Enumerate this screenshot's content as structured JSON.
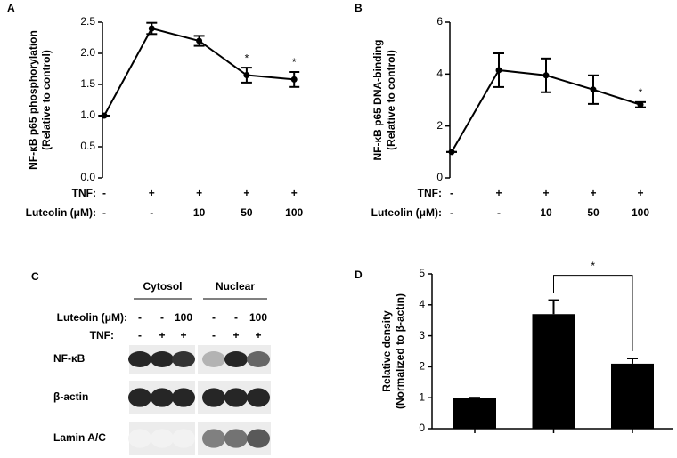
{
  "chart_data": [
    {
      "type": "line",
      "panel": "A",
      "color": "#000000",
      "ylabel": [
        "NF-κB p65 phosphorylation",
        "(Relative to control)"
      ],
      "category_rows": [
        {
          "label": "TNF:",
          "values": [
            "-",
            "+",
            "+",
            "+",
            "+"
          ]
        },
        {
          "label": "Luteolin (μM):",
          "values": [
            "-",
            "-",
            "10",
            "50",
            "100"
          ]
        }
      ],
      "values": [
        1.0,
        2.4,
        2.2,
        1.65,
        1.58
      ],
      "errors": [
        0,
        0.09,
        0.08,
        0.12,
        0.12
      ],
      "annotations": [
        {
          "index": 3,
          "text": "*"
        },
        {
          "index": 4,
          "text": "*"
        }
      ],
      "ylim": [
        0,
        2.5
      ],
      "yticks": [
        {
          "value": 0,
          "label": "0.0"
        },
        0.5,
        {
          "value": 1,
          "label": "1.0"
        },
        1.5,
        {
          "value": 2,
          "label": "2.0"
        },
        2.5
      ]
    },
    {
      "type": "line",
      "panel": "B",
      "color": "#000000",
      "ylabel": [
        "NF-κB p65 DNA-binding",
        "(Relative to control)"
      ],
      "category_rows": [
        {
          "label": "TNF:",
          "values": [
            "-",
            "+",
            "+",
            "+",
            "+"
          ]
        },
        {
          "label": "Luteolin (μM):",
          "values": [
            "-",
            "-",
            "10",
            "50",
            "100"
          ]
        }
      ],
      "values": [
        1.0,
        4.15,
        3.95,
        3.4,
        2.82
      ],
      "errors": [
        0,
        0.65,
        0.65,
        0.55,
        0.1
      ],
      "annotations": [
        {
          "index": 4,
          "text": "*"
        }
      ],
      "ylim": [
        0,
        6
      ],
      "yticks": [
        0,
        2,
        4,
        6
      ]
    },
    {
      "type": "bar",
      "panel": "D",
      "color": "#000000",
      "ylabel": [
        "Relative density",
        "(Normalized to β-actin)"
      ],
      "values": [
        1.0,
        3.7,
        2.1
      ],
      "errors": [
        0,
        0.45,
        0.17
      ],
      "significance": {
        "from": 1,
        "to": 2,
        "text": "*"
      },
      "ylim": [
        0,
        5
      ],
      "yticks": [
        0,
        1,
        2,
        3,
        4,
        5
      ]
    }
  ],
  "blot": {
    "panel": "C",
    "groups": [
      "Cytosol",
      "Nuclear"
    ],
    "lane_rows": [
      {
        "label": "Luteolin (μM):",
        "values": [
          "-",
          "-",
          "100",
          "-",
          "-",
          "100"
        ]
      },
      {
        "label": "TNF:",
        "values": [
          "-",
          "+",
          "+",
          "-",
          "+",
          "+"
        ]
      }
    ],
    "rows": [
      "NF-κB",
      "β-actin",
      "Lamin A/C"
    ]
  }
}
